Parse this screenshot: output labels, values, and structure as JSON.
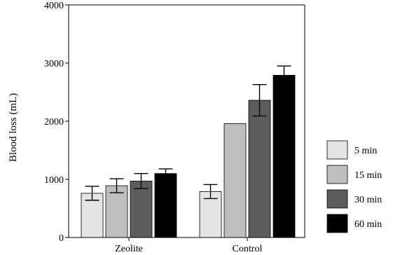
{
  "chart_data": {
    "type": "bar",
    "title": "",
    "xlabel": "",
    "ylabel": "Blood loss (mL)",
    "ylim": [
      0,
      4000
    ],
    "yticks": [
      0,
      1000,
      2000,
      3000,
      4000
    ],
    "grid": false,
    "legend_position": "right",
    "categories": [
      "Zeolite",
      "Control"
    ],
    "series": [
      {
        "name": "5 min",
        "color": "#e4e4e4",
        "values": [
          760,
          790
        ],
        "errors": [
          120,
          120
        ]
      },
      {
        "name": "15 min",
        "color": "#bebebe",
        "values": [
          890,
          1960
        ],
        "errors": [
          120,
          null
        ]
      },
      {
        "name": "30 min",
        "color": "#5d5d5d",
        "values": [
          970,
          2360
        ],
        "errors": [
          130,
          270
        ]
      },
      {
        "name": "60 min",
        "color": "#000000",
        "values": [
          1100,
          2790
        ],
        "errors": [
          80,
          160
        ]
      }
    ]
  }
}
